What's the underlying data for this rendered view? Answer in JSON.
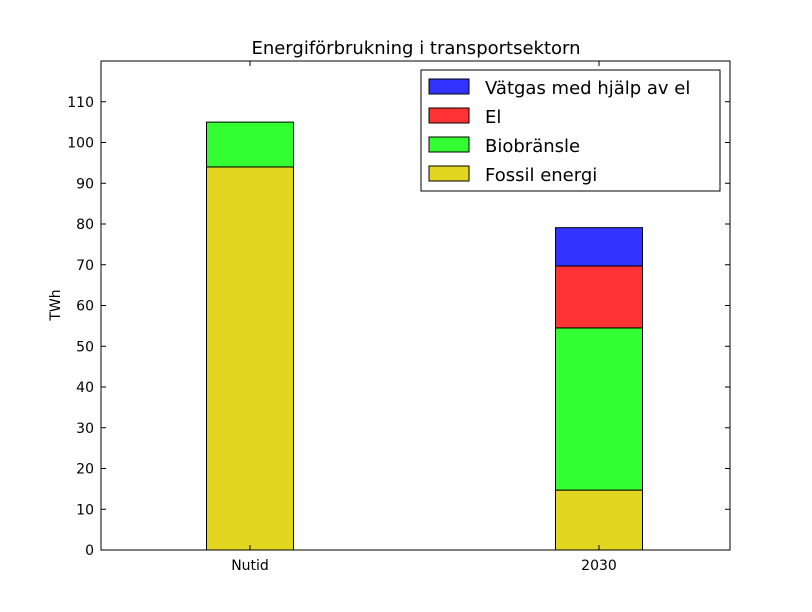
{
  "chart_data": {
    "type": "bar",
    "stacked": true,
    "title": "Energiförbrukning i transportsektorn",
    "xlabel": "",
    "ylabel": "TWh",
    "categories": [
      "Nutid",
      "2030"
    ],
    "ylim": [
      0,
      120
    ],
    "yticks": [
      0,
      10,
      20,
      30,
      40,
      50,
      60,
      70,
      80,
      90,
      100,
      110
    ],
    "grid": false,
    "legend_position": "top-right",
    "series": [
      {
        "name": "Fossil energi",
        "color": "#e3d621",
        "values": [
          94,
          14.7
        ]
      },
      {
        "name": "Biobränsle",
        "color": "#33ff33",
        "values": [
          11,
          39.8
        ]
      },
      {
        "name": "El",
        "color": "#ff3333",
        "values": [
          0,
          15.2
        ]
      },
      {
        "name": "Vätgas med hjälp av el",
        "color": "#3333ff",
        "values": [
          0,
          9.4
        ]
      }
    ]
  }
}
